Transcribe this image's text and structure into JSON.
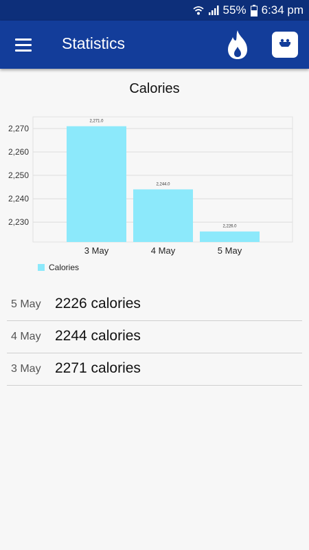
{
  "status": {
    "battery": "55%",
    "time": "6:34 pm"
  },
  "app_bar": {
    "title": "Statistics",
    "icons": [
      "menu-icon",
      "flame-icon",
      "scale-icon"
    ]
  },
  "chart_data": {
    "type": "bar",
    "title": "Calories",
    "categories": [
      "3 May",
      "4 May",
      "5 May"
    ],
    "series": [
      {
        "name": "Calories",
        "values": [
          2271,
          2244,
          2226
        ],
        "color": "#8ce9fb"
      }
    ],
    "data_labels": [
      "2,271.0",
      "2,244.0",
      "2,226.0"
    ],
    "ylim": [
      2221.5,
      2275
    ],
    "yticks": [
      2230,
      2240,
      2250,
      2260,
      2270
    ],
    "ytick_labels": [
      "2,230",
      "2,240",
      "2,250",
      "2,260",
      "2,270"
    ],
    "grid": true,
    "legend": "bottom-left"
  },
  "list": [
    {
      "date": "5 May",
      "value": "2226 calories"
    },
    {
      "date": "4 May",
      "value": "2244 calories"
    },
    {
      "date": "3 May",
      "value": "2271 calories"
    }
  ]
}
